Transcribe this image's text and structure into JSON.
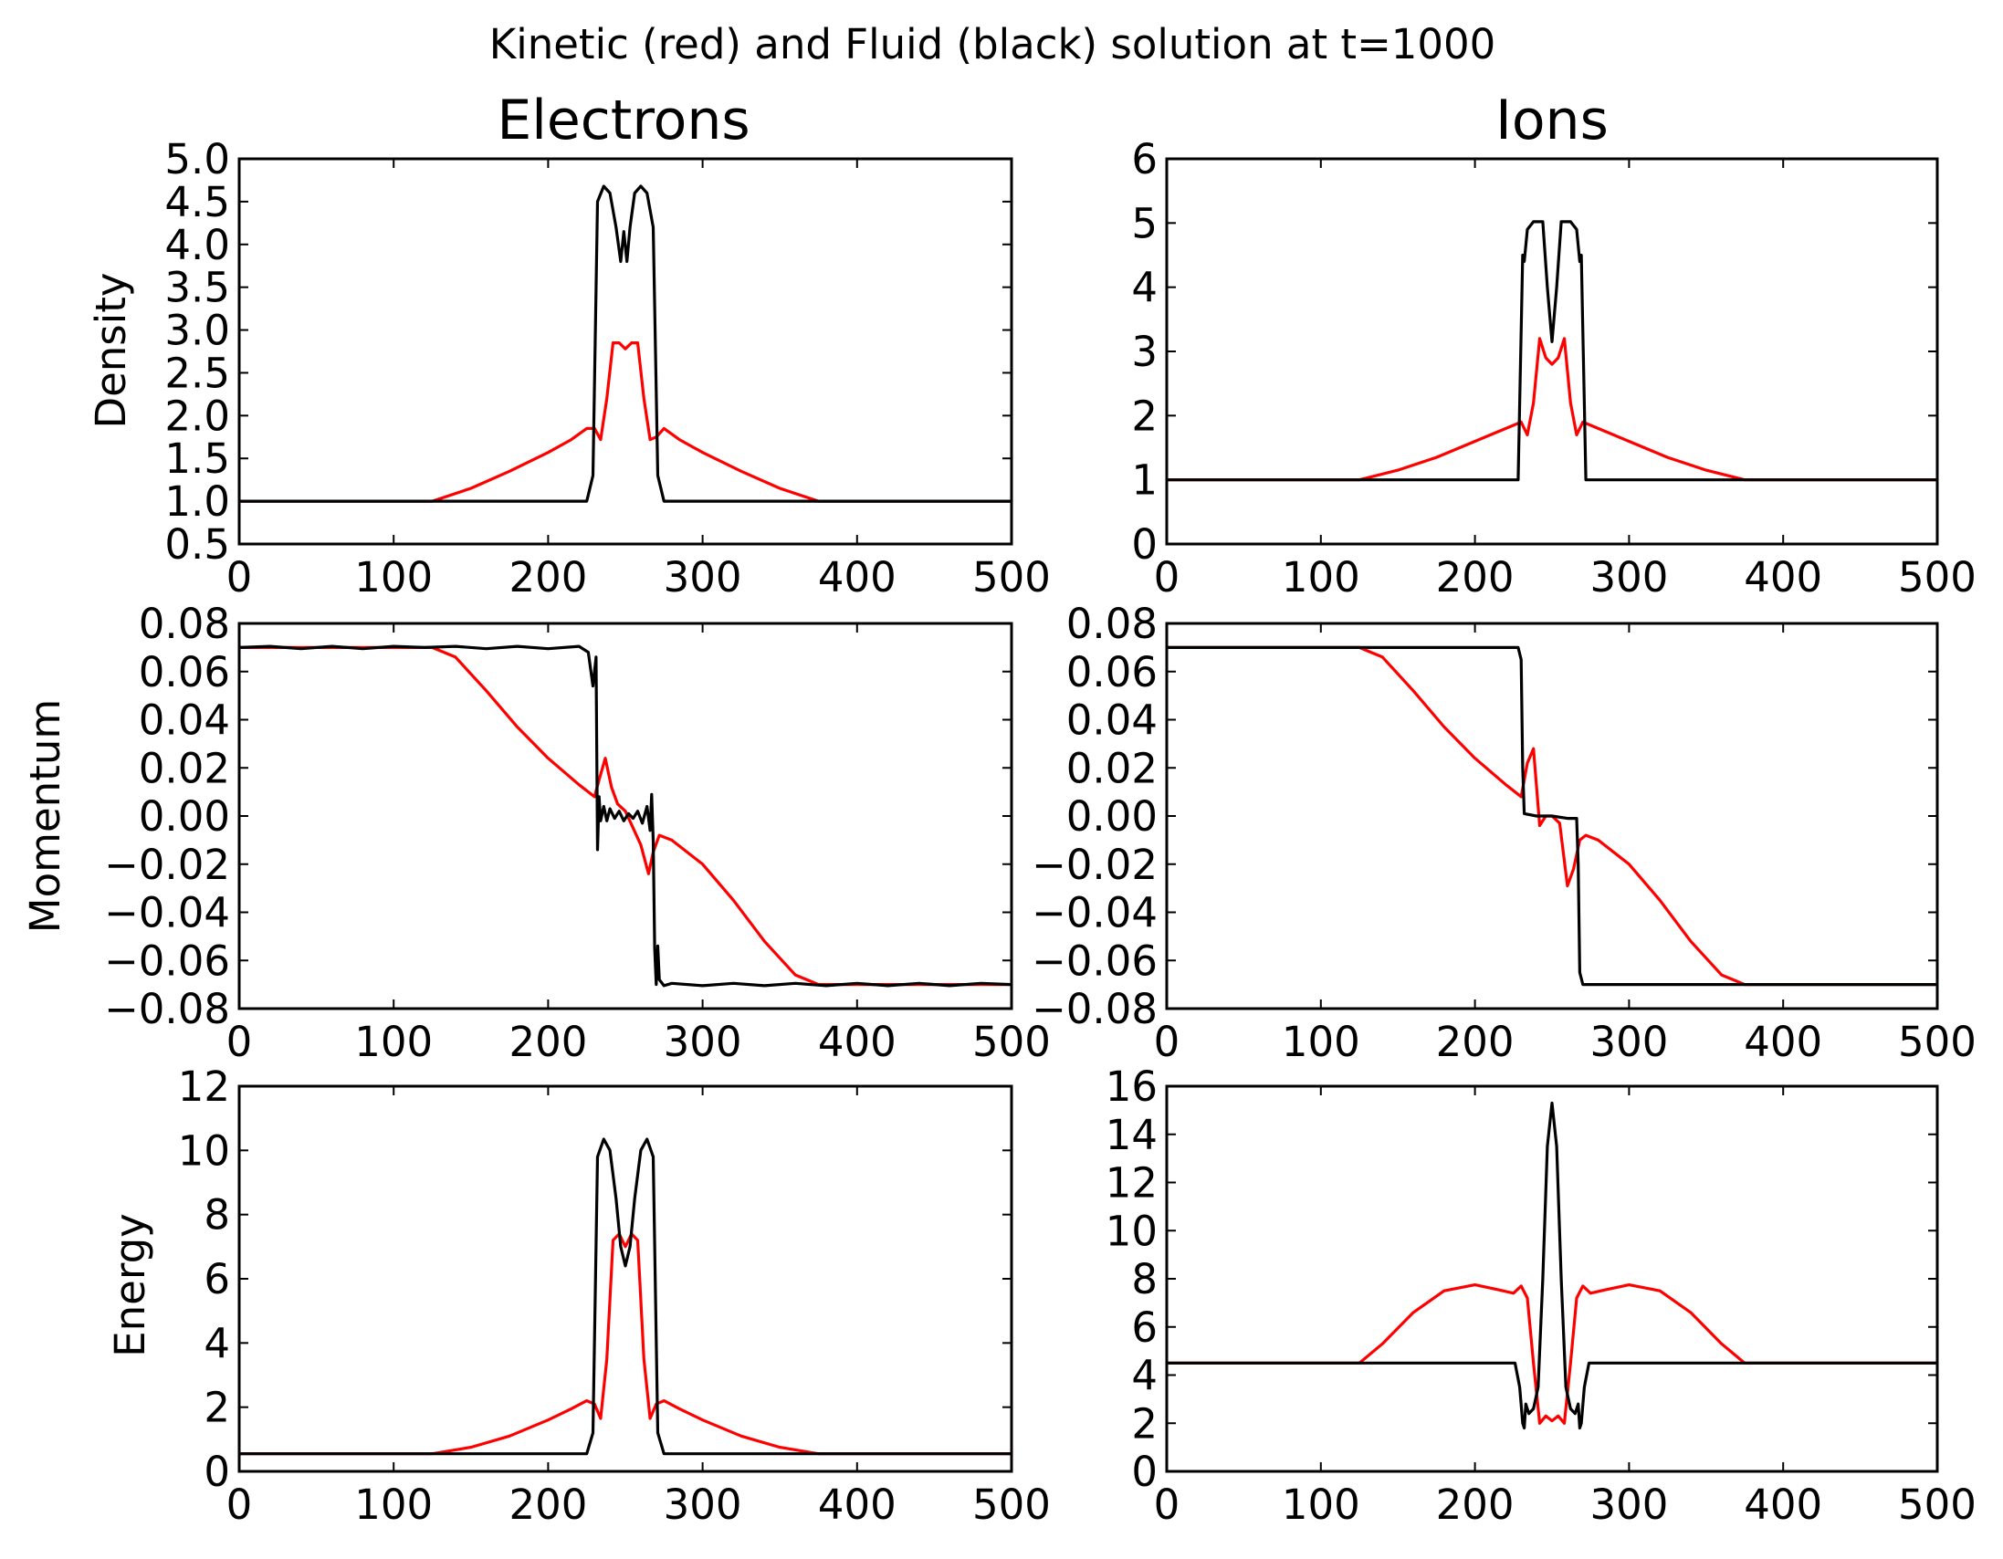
{
  "figure": {
    "suptitle": "Kinetic (red) and Fluid (black) solution at t=1000",
    "column_titles": [
      "Electrons",
      "Ions"
    ],
    "row_labels": [
      "Density",
      "Momentum",
      "Energy"
    ],
    "colors": {
      "kinetic": "#ff0000",
      "fluid": "#000000"
    }
  },
  "chart_data": [
    {
      "id": "electrons-density",
      "type": "line",
      "title": "Electrons",
      "ylabel": "Density",
      "xlim": [
        0,
        500
      ],
      "ylim": [
        0.5,
        5.0
      ],
      "xticks": [
        "0",
        "100",
        "200",
        "300",
        "400",
        "500"
      ],
      "yticks": [
        "0.5",
        "1.0",
        "1.5",
        "2.0",
        "2.5",
        "3.0",
        "3.5",
        "4.0",
        "4.5",
        "5.0"
      ],
      "ytick_values": [
        0.5,
        1.0,
        1.5,
        2.0,
        2.5,
        3.0,
        3.5,
        4.0,
        4.5,
        5.0
      ],
      "grid": false,
      "series": [
        {
          "color": "#ff0000",
          "x": [
            0,
            125,
            150,
            175,
            200,
            215,
            225,
            230,
            234,
            238,
            242,
            246,
            250,
            254,
            258,
            262,
            266,
            270,
            275,
            285,
            300,
            325,
            350,
            375,
            500
          ],
          "y": [
            1.0,
            1.0,
            1.15,
            1.35,
            1.57,
            1.72,
            1.85,
            1.85,
            1.72,
            2.2,
            2.85,
            2.85,
            2.78,
            2.85,
            2.85,
            2.2,
            1.72,
            1.75,
            1.85,
            1.72,
            1.57,
            1.35,
            1.15,
            1.0,
            1.0
          ]
        },
        {
          "color": "#000000",
          "x": [
            0,
            225,
            229,
            232,
            236,
            240,
            244,
            247,
            249,
            251,
            253,
            256,
            260,
            264,
            268,
            271,
            275,
            500
          ],
          "y": [
            1.0,
            1.0,
            1.3,
            4.5,
            4.68,
            4.6,
            4.2,
            3.8,
            4.15,
            3.8,
            4.2,
            4.6,
            4.68,
            4.6,
            4.2,
            1.3,
            1.0,
            1.0
          ]
        }
      ]
    },
    {
      "id": "ions-density",
      "type": "line",
      "title": "Ions",
      "ylabel": "",
      "xlim": [
        0,
        500
      ],
      "ylim": [
        0,
        6
      ],
      "xticks": [
        "0",
        "100",
        "200",
        "300",
        "400",
        "500"
      ],
      "yticks": [
        "0",
        "1",
        "2",
        "3",
        "4",
        "5",
        "6"
      ],
      "ytick_values": [
        0,
        1,
        2,
        3,
        4,
        5,
        6
      ],
      "grid": false,
      "series": [
        {
          "color": "#ff0000",
          "x": [
            0,
            125,
            150,
            175,
            200,
            220,
            230,
            234,
            238,
            242,
            246,
            250,
            254,
            258,
            262,
            266,
            270,
            280,
            300,
            325,
            350,
            375,
            500
          ],
          "y": [
            1.0,
            1.0,
            1.15,
            1.35,
            1.6,
            1.8,
            1.9,
            1.7,
            2.2,
            3.2,
            2.9,
            2.8,
            2.9,
            3.2,
            2.2,
            1.7,
            1.9,
            1.8,
            1.6,
            1.35,
            1.15,
            1.0,
            1.0
          ]
        },
        {
          "color": "#000000",
          "x": [
            0,
            228,
            231,
            232,
            234,
            238,
            244,
            247,
            250,
            253,
            256,
            262,
            266,
            268,
            269,
            272,
            500
          ],
          "y": [
            1.0,
            1.0,
            4.5,
            4.4,
            4.9,
            5.02,
            5.02,
            4.0,
            3.15,
            4.0,
            5.02,
            5.02,
            4.9,
            4.4,
            4.5,
            1.0,
            1.0
          ]
        }
      ]
    },
    {
      "id": "electrons-momentum",
      "type": "line",
      "title": "",
      "ylabel": "Momentum",
      "xlim": [
        0,
        500
      ],
      "ylim": [
        -0.08,
        0.08
      ],
      "xticks": [
        "0",
        "100",
        "200",
        "300",
        "400",
        "500"
      ],
      "yticks": [
        "0.08",
        "0.06",
        "0.04",
        "0.02",
        "0.00",
        "−0.02",
        "−0.04",
        "−0.06",
        "−0.08"
      ],
      "ytick_values": [
        0.08,
        0.06,
        0.04,
        0.02,
        0.0,
        -0.02,
        -0.04,
        -0.06,
        -0.08
      ],
      "grid": false,
      "series": [
        {
          "color": "#ff0000",
          "x": [
            0,
            125,
            140,
            160,
            180,
            200,
            220,
            230,
            233,
            237,
            241,
            245,
            250,
            255,
            260,
            265,
            268,
            272,
            280,
            300,
            320,
            340,
            360,
            375,
            500
          ],
          "y": [
            0.07,
            0.07,
            0.066,
            0.052,
            0.037,
            0.024,
            0.013,
            0.008,
            0.015,
            0.024,
            0.012,
            0.005,
            0.002,
            -0.005,
            -0.012,
            -0.024,
            -0.015,
            -0.008,
            -0.01,
            -0.02,
            -0.035,
            -0.052,
            -0.066,
            -0.07,
            -0.07
          ]
        },
        {
          "color": "#000000",
          "x": [
            0,
            20,
            40,
            60,
            80,
            100,
            120,
            140,
            160,
            180,
            200,
            220,
            226,
            229,
            231,
            232,
            233,
            234,
            236,
            238,
            240,
            243,
            246,
            249,
            252,
            255,
            258,
            261,
            264,
            266,
            267,
            268,
            269,
            270,
            271,
            272,
            275,
            280,
            300,
            320,
            340,
            360,
            380,
            400,
            420,
            440,
            460,
            480,
            500
          ],
          "y": [
            0.07,
            0.0705,
            0.0695,
            0.0705,
            0.0695,
            0.0705,
            0.07,
            0.0705,
            0.0695,
            0.0705,
            0.0695,
            0.0705,
            0.068,
            0.054,
            0.066,
            -0.014,
            0.008,
            -0.002,
            0.004,
            -0.002,
            0.003,
            -0.001,
            0.002,
            -0.002,
            0.001,
            -0.001,
            0.002,
            -0.003,
            0.004,
            -0.006,
            0.009,
            -0.01,
            -0.055,
            -0.07,
            -0.054,
            -0.068,
            -0.0705,
            -0.0695,
            -0.0705,
            -0.0695,
            -0.0705,
            -0.0695,
            -0.0705,
            -0.0695,
            -0.0705,
            -0.0695,
            -0.0705,
            -0.0695,
            -0.07
          ]
        }
      ]
    },
    {
      "id": "ions-momentum",
      "type": "line",
      "title": "",
      "ylabel": "",
      "xlim": [
        0,
        500
      ],
      "ylim": [
        -0.08,
        0.08
      ],
      "xticks": [
        "0",
        "100",
        "200",
        "300",
        "400",
        "500"
      ],
      "yticks": [
        "0.08",
        "0.06",
        "0.04",
        "0.02",
        "0.00",
        "−0.02",
        "−0.04",
        "−0.06",
        "−0.08"
      ],
      "ytick_values": [
        0.08,
        0.06,
        0.04,
        0.02,
        0.0,
        -0.02,
        -0.04,
        -0.06,
        -0.08
      ],
      "grid": false,
      "series": [
        {
          "color": "#ff0000",
          "x": [
            0,
            125,
            140,
            160,
            180,
            200,
            220,
            230,
            234,
            238,
            242,
            246,
            250,
            255,
            260,
            264,
            268,
            272,
            280,
            300,
            320,
            340,
            360,
            375,
            500
          ],
          "y": [
            0.07,
            0.07,
            0.066,
            0.052,
            0.037,
            0.024,
            0.013,
            0.008,
            0.022,
            0.028,
            -0.004,
            0.0,
            0.0,
            -0.003,
            -0.029,
            -0.022,
            -0.01,
            -0.008,
            -0.01,
            -0.02,
            -0.035,
            -0.052,
            -0.066,
            -0.07,
            -0.07
          ]
        },
        {
          "color": "#000000",
          "x": [
            0,
            228,
            230,
            231,
            232,
            240,
            250,
            260,
            266,
            267,
            268,
            270,
            272,
            500
          ],
          "y": [
            0.07,
            0.07,
            0.065,
            0.02,
            0.001,
            0.0,
            0.0,
            -0.001,
            -0.001,
            -0.02,
            -0.065,
            -0.07,
            -0.07,
            -0.07
          ]
        }
      ]
    },
    {
      "id": "electrons-energy",
      "type": "line",
      "title": "",
      "ylabel": "Energy",
      "xlim": [
        0,
        500
      ],
      "ylim": [
        0,
        12
      ],
      "xticks": [
        "0",
        "100",
        "200",
        "300",
        "400",
        "500"
      ],
      "yticks": [
        "0",
        "2",
        "4",
        "6",
        "8",
        "10",
        "12"
      ],
      "ytick_values": [
        0,
        2,
        4,
        6,
        8,
        10,
        12
      ],
      "grid": false,
      "series": [
        {
          "color": "#ff0000",
          "x": [
            0,
            125,
            150,
            175,
            200,
            215,
            225,
            230,
            234,
            238,
            242,
            246,
            250,
            254,
            258,
            262,
            266,
            270,
            275,
            285,
            300,
            325,
            350,
            375,
            500
          ],
          "y": [
            0.55,
            0.55,
            0.75,
            1.1,
            1.6,
            1.95,
            2.2,
            2.1,
            1.65,
            3.5,
            7.2,
            7.4,
            7.0,
            7.4,
            7.2,
            3.5,
            1.65,
            2.1,
            2.2,
            1.95,
            1.6,
            1.1,
            0.75,
            0.55,
            0.55
          ]
        },
        {
          "color": "#000000",
          "x": [
            0,
            225,
            229,
            232,
            236,
            240,
            244,
            247,
            250,
            253,
            256,
            260,
            264,
            268,
            271,
            275,
            500
          ],
          "y": [
            0.55,
            0.55,
            1.2,
            9.8,
            10.35,
            10.0,
            8.5,
            7.0,
            6.4,
            7.0,
            8.5,
            10.0,
            10.35,
            9.8,
            1.2,
            0.55,
            0.55
          ]
        }
      ]
    },
    {
      "id": "ions-energy",
      "type": "line",
      "title": "",
      "ylabel": "",
      "xlim": [
        0,
        500
      ],
      "ylim": [
        0,
        16
      ],
      "xticks": [
        "0",
        "100",
        "200",
        "300",
        "400",
        "500"
      ],
      "yticks": [
        "0",
        "2",
        "4",
        "6",
        "8",
        "10",
        "12",
        "14",
        "16"
      ],
      "ytick_values": [
        0,
        2,
        4,
        6,
        8,
        10,
        12,
        14,
        16
      ],
      "grid": false,
      "series": [
        {
          "color": "#ff0000",
          "x": [
            0,
            125,
            140,
            160,
            180,
            200,
            215,
            225,
            230,
            234,
            238,
            242,
            246,
            250,
            254,
            258,
            262,
            266,
            270,
            275,
            285,
            300,
            320,
            340,
            360,
            375,
            500
          ],
          "y": [
            4.5,
            4.5,
            5.3,
            6.6,
            7.5,
            7.75,
            7.55,
            7.4,
            7.7,
            7.2,
            4.5,
            2.0,
            2.3,
            2.1,
            2.3,
            2.0,
            4.5,
            7.2,
            7.7,
            7.4,
            7.55,
            7.75,
            7.5,
            6.6,
            5.3,
            4.5,
            4.5
          ]
        },
        {
          "color": "#000000",
          "x": [
            0,
            226,
            229,
            231,
            232,
            233,
            235,
            238,
            241,
            244,
            247,
            250,
            253,
            256,
            259,
            262,
            265,
            267,
            268,
            269,
            271,
            274,
            500
          ],
          "y": [
            4.5,
            4.5,
            3.5,
            2.0,
            1.8,
            2.8,
            2.4,
            2.6,
            3.5,
            8.0,
            13.5,
            15.3,
            13.5,
            8.0,
            3.5,
            2.6,
            2.4,
            2.8,
            1.8,
            2.0,
            3.5,
            4.5,
            4.5
          ]
        }
      ]
    }
  ]
}
